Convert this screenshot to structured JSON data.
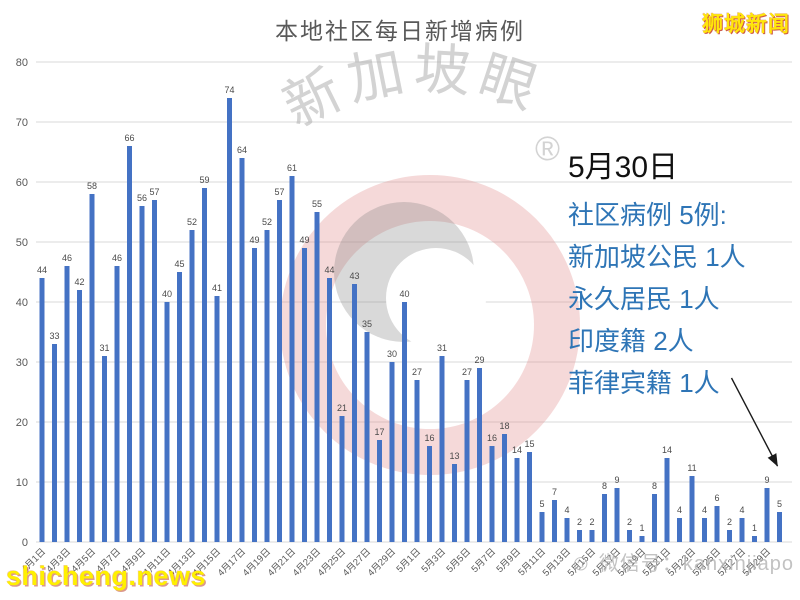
{
  "branding": {
    "logo_text": "狮城新闻",
    "logo_color": "#FFE60A",
    "site_url": "shicheng.news",
    "wechat_label": "微信号：kanxinjiapo"
  },
  "watermark": {
    "text": "新加坡眼",
    "mark": "®"
  },
  "annotation": {
    "date": "5月30日",
    "color": "#2E75B6",
    "lines": [
      "社区病例 5例:",
      "新加坡公民 1人",
      "永久居民 1人",
      "印度籍 2人",
      "菲律宾籍 1人"
    ]
  },
  "chart_data": {
    "type": "bar",
    "title": "本地社区每日新增病例",
    "xlabel": "",
    "ylabel": "",
    "ylim": [
      0,
      80
    ],
    "ytick_step": 10,
    "grid": true,
    "legend": false,
    "bar_color": "#4472C4",
    "label_color": "#4a4a4a",
    "axis_color": "#595959",
    "categories": [
      "4月1日",
      "4月2日",
      "4月3日",
      "4月4日",
      "4月5日",
      "4月6日",
      "4月7日",
      "4月8日",
      "4月9日",
      "4月10日",
      "4月11日",
      "4月12日",
      "4月13日",
      "4月14日",
      "4月15日",
      "4月16日",
      "4月17日",
      "4月18日",
      "4月19日",
      "4月20日",
      "4月21日",
      "4月22日",
      "4月23日",
      "4月24日",
      "4月25日",
      "4月26日",
      "4月27日",
      "4月28日",
      "4月29日",
      "4月30日",
      "5月1日",
      "5月2日",
      "5月3日",
      "5月4日",
      "5月5日",
      "5月6日",
      "5月7日",
      "5月8日",
      "5月9日",
      "5月10日",
      "5月11日",
      "5月12日",
      "5月13日",
      "5月14日",
      "5月15日",
      "5月16日",
      "5月17日",
      "5月18日",
      "5月19日",
      "5月20日",
      "5月21日",
      "5月22日",
      "5月23日",
      "5月24日",
      "5月25日",
      "5月26日",
      "5月27日",
      "5月28日",
      "5月29日",
      "5月30日"
    ],
    "values": [
      44,
      33,
      46,
      42,
      58,
      31,
      46,
      66,
      56,
      57,
      40,
      45,
      52,
      59,
      41,
      74,
      64,
      49,
      52,
      57,
      61,
      49,
      55,
      44,
      21,
      43,
      35,
      17,
      30,
      40,
      27,
      16,
      31,
      13,
      27,
      29,
      16,
      18,
      14,
      15,
      5,
      7,
      4,
      2,
      2,
      8,
      9,
      2,
      1,
      8,
      14,
      4,
      11,
      4,
      6,
      2,
      4,
      1,
      9,
      5
    ],
    "x_ticks_every": 2
  }
}
